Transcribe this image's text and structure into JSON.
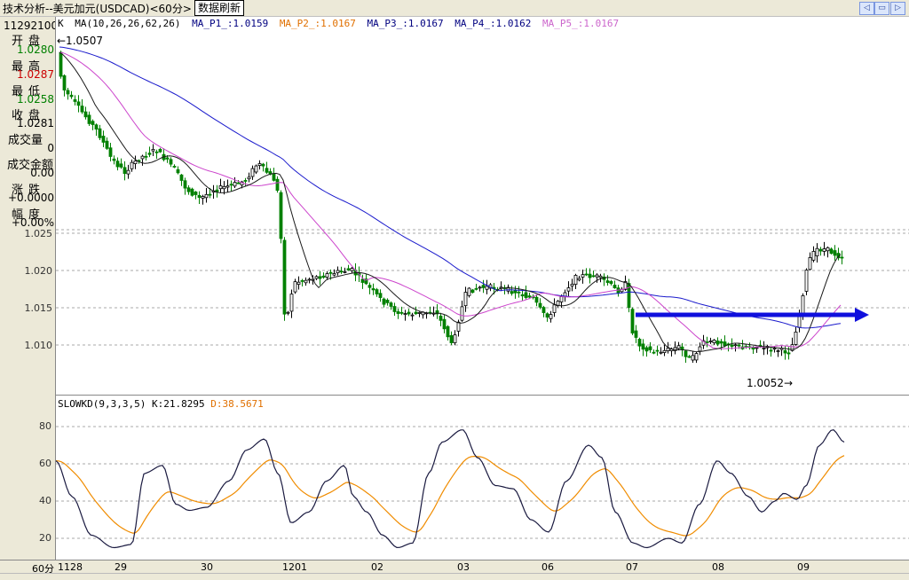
{
  "title": "技术分析--美元加元(USDCAD)<60分>",
  "refresh_label": "数据刷新",
  "sidebar": {
    "code": "11292100",
    "open_label": "开盘",
    "open_value": "1.0280",
    "high_label": "最高",
    "high_value": "1.0287",
    "low_label": "最低",
    "low_value": "1.0258",
    "close_label": "收盘",
    "close_value": "1.0281",
    "volume_label": "成交量",
    "volume_value": "0",
    "amount_label": "成交金额",
    "amount_value": "0.00",
    "change_label": "涨跌",
    "change_value": "+0.0000",
    "pct_label": "幅度",
    "pct_value": "+0.00%"
  },
  "colors": {
    "up": "#000000",
    "down": "#008000",
    "ma1": "#1a1a1a",
    "ma2": "#cc44cc",
    "ma3": "#1a1acc",
    "arrow": "#1010dd",
    "k": "#1a1a40",
    "d": "#f08c00"
  },
  "kline_legend": {
    "type": "K",
    "ma_params": "MA(10,26,26,62,26)",
    "ma_p1": "MA_P1_:1.0159",
    "ma_p2": "MA_P2_:1.0167",
    "ma_p3": "MA_P3_:1.0167",
    "ma_p4": "MA_P4_:1.0162",
    "ma_p5": "MA_P5_:1.0167"
  },
  "annotations": {
    "max_label": "←1.0507",
    "min_label": "1.0052→"
  },
  "price_axis": [
    "1.025",
    "1.020",
    "1.015",
    "1.010"
  ],
  "kd_legend": {
    "name": "SLOWKD(9,3,3,5)",
    "k": "K:21.8295",
    "d": "D:38.5671"
  },
  "kd_axis": [
    "80",
    "60",
    "40",
    "20"
  ],
  "period_label": "60分",
  "x_labels": [
    "1128",
    "29",
    "30",
    "1201",
    "02",
    "03",
    "06",
    "07",
    "08",
    "09"
  ]
}
